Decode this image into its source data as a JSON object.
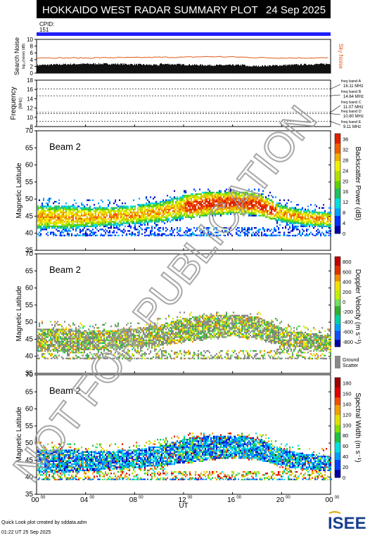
{
  "header": {
    "title": "HOKKAIDO WEST RADAR SUMMARY PLOT",
    "date": "24 Sep 2025",
    "cpid_label": "CPID:",
    "cpid_value": "151",
    "cpid_bar_color": "#1f1fff"
  },
  "watermark": "NOT FOR PUBLICATION",
  "footer": {
    "created": "Quick Look plot created by sddata.adm",
    "timestamp": "01:22 UT 25 Sep 2025",
    "logo_text": "ISEE"
  },
  "x_axis": {
    "label": "UT",
    "ticks": [
      "00",
      "04",
      "08",
      "12",
      "16",
      "20",
      "00"
    ],
    "tick_sup": "00",
    "range_hours": [
      0,
      24
    ]
  },
  "noise_panel": {
    "ylabel": "Search Noise",
    "ylabel_sub": "log₁₀(noise) (dB)",
    "ticks": [
      "0",
      "2",
      "4",
      "6",
      "8",
      "10"
    ],
    "ylim": [
      0,
      10
    ],
    "sky_label": "Sky Noise",
    "sky_color": "#e05a1a"
  },
  "freq_panel": {
    "ylabel": "Frequency",
    "ylabel_sub": "(MHz)",
    "ticks": [
      "8",
      "10",
      "12",
      "14",
      "16",
      "18"
    ],
    "ylim": [
      8,
      18
    ],
    "bands": [
      {
        "name": "freq band A",
        "mhz": "16.11 MHz",
        "value": 16.11
      },
      {
        "name": "freq band B",
        "mhz": "14.64 MHz",
        "value": 14.64
      },
      {
        "name": "freq band C",
        "mhz": "11.07 MHz",
        "value": 11.07
      },
      {
        "name": "freq band D",
        "mhz": "10.80 MHz",
        "value": 10.8
      },
      {
        "name": "freq band E",
        "mhz": "9.11 MHz",
        "value": 9.11
      }
    ]
  },
  "beam_panels": [
    {
      "beam_label": "Beam  2",
      "ylabel": "Magnetic Latitude",
      "yticks": [
        "35",
        "40",
        "45",
        "50",
        "55",
        "60",
        "65",
        "70"
      ],
      "ylim": [
        35,
        70
      ],
      "cbar_label": "Backscatter Power (dB)",
      "cbar_ticks": [
        "0",
        "4",
        "8",
        "12",
        "16",
        "20",
        "24",
        "28",
        "32",
        "36"
      ],
      "cbar_range": [
        0,
        38
      ],
      "palette": "power"
    },
    {
      "beam_label": "Beam  2",
      "ylabel": "Magnetic Latitude",
      "yticks": [
        "35",
        "40",
        "45",
        "50",
        "55",
        "60",
        "65",
        "70"
      ],
      "ylim": [
        35,
        70
      ],
      "cbar_label": "Doppler Velocity (m s⁻¹)",
      "cbar_ticks": [
        "-800",
        "-600",
        "-400",
        "-200",
        "0",
        "200",
        "400",
        "600",
        "800"
      ],
      "cbar_range": [
        -900,
        900
      ],
      "ground_label": "Ground",
      "ground_label2": "Scatter",
      "ground_color": "#888888",
      "palette": "velocity"
    },
    {
      "beam_label": "Beam  2",
      "ylabel": "Magnetic Latitude",
      "yticks": [
        "35",
        "40",
        "45",
        "50",
        "55",
        "60",
        "65",
        "70"
      ],
      "ylim": [
        35,
        70
      ],
      "cbar_label": "Spectral Width (m s⁻¹)",
      "cbar_ticks": [
        "0",
        "20",
        "40",
        "60",
        "80",
        "100",
        "120",
        "140",
        "160",
        "180"
      ],
      "cbar_range": [
        0,
        190
      ],
      "palette": "width"
    }
  ],
  "chart_data": [
    {
      "type": "line",
      "title": "Search Noise",
      "xlabel": "UT",
      "ylabel": "Search Noise",
      "ylim": [
        0,
        10
      ],
      "x": [
        0,
        2,
        4,
        6,
        8,
        10,
        12,
        14,
        16,
        18,
        20,
        22,
        24
      ],
      "series": [
        {
          "name": "Sky Noise",
          "values": [
            4.6,
            4.5,
            4.5,
            4.6,
            4.6,
            4.7,
            4.7,
            4.9,
            4.8,
            4.6,
            4.5,
            4.5,
            4.5
          ]
        }
      ]
    },
    {
      "type": "heatmap",
      "title": "Beam 2 Backscatter Power",
      "xlabel": "UT",
      "ylabel": "Magnetic Latitude",
      "ylim": [
        35,
        70
      ],
      "x": [
        0,
        2,
        4,
        6,
        8,
        10,
        12,
        14,
        16,
        18,
        20,
        22,
        24
      ],
      "series": [
        {
          "name": "echo lower edge (deg)",
          "values": [
            41,
            41,
            41.5,
            42,
            42.5,
            43,
            44,
            45,
            45.5,
            45,
            43,
            42,
            41.5
          ]
        },
        {
          "name": "echo upper edge (deg)",
          "values": [
            48,
            48,
            47.5,
            47.5,
            48,
            49,
            51,
            52,
            52,
            51.5,
            48,
            46.5,
            46
          ]
        }
      ]
    },
    {
      "type": "heatmap",
      "title": "Beam 2 Doppler Velocity",
      "xlabel": "UT",
      "ylabel": "Magnetic Latitude",
      "ylim": [
        35,
        70
      ]
    },
    {
      "type": "heatmap",
      "title": "Beam 2 Spectral Width",
      "xlabel": "UT",
      "ylabel": "Magnetic Latitude",
      "ylim": [
        35,
        70
      ]
    }
  ]
}
